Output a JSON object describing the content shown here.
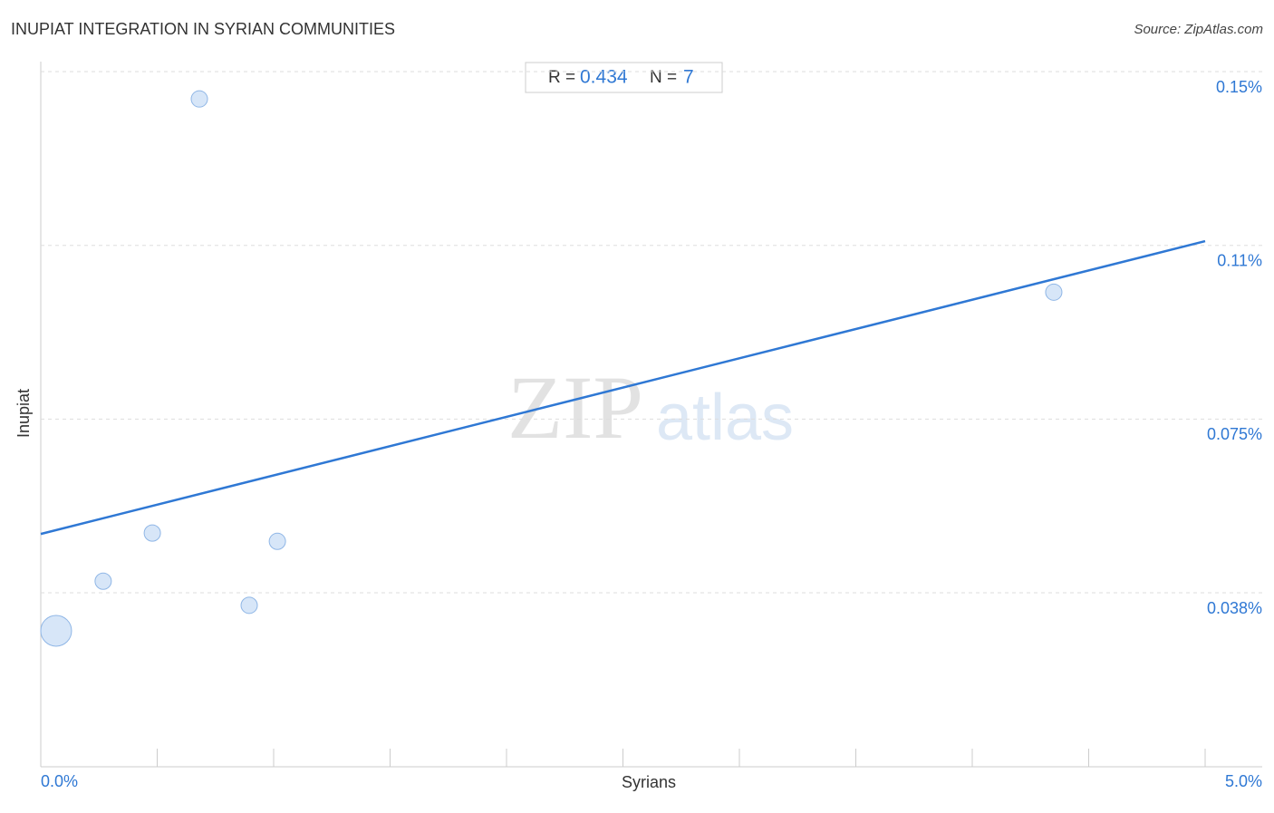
{
  "chart_data": {
    "type": "scatter",
    "title": "INUPIAT INTEGRATION IN SYRIAN COMMUNITIES",
    "source": "Source: ZipAtlas.com",
    "x_label": "Syrians",
    "y_label": "Inupiat",
    "watermark": [
      "ZIP",
      "atlas"
    ],
    "stats": {
      "r_label": "R =",
      "r": 0.434,
      "n_label": "N =",
      "n": 7
    },
    "series": [
      {
        "name": "Inupiat",
        "color": "#c9ddf5",
        "x": [
          0.066,
          0.268,
          0.479,
          0.681,
          0.895,
          1.016,
          4.35
        ],
        "values": [
          0.0293,
          0.04,
          0.0504,
          0.1441,
          0.0348,
          0.0486,
          0.1024
        ],
        "sizes": [
          17,
          9,
          9,
          9,
          9,
          9,
          9
        ]
      }
    ],
    "trendline": {
      "color": "#2f78d4",
      "x": [
        0,
        5
      ],
      "values": [
        0.0502,
        0.1134
      ]
    },
    "xlim": [
      0,
      5
    ],
    "ylim": [
      0,
      0.152
    ],
    "xticks": [
      {
        "value": 0,
        "label": "0.0%"
      },
      {
        "value": 5,
        "label": "5.0%"
      }
    ],
    "xminor_ticks": [
      0.5,
      1,
      1.5,
      2,
      2.5,
      3,
      3.5,
      4,
      4.5,
      5
    ],
    "yticks": [
      {
        "value": 0.0375,
        "label": "0.038%"
      },
      {
        "value": 0.075,
        "label": "0.075%"
      },
      {
        "value": 0.1125,
        "label": "0.11%"
      },
      {
        "value": 0.15,
        "label": "0.15%"
      }
    ],
    "grid": true
  }
}
